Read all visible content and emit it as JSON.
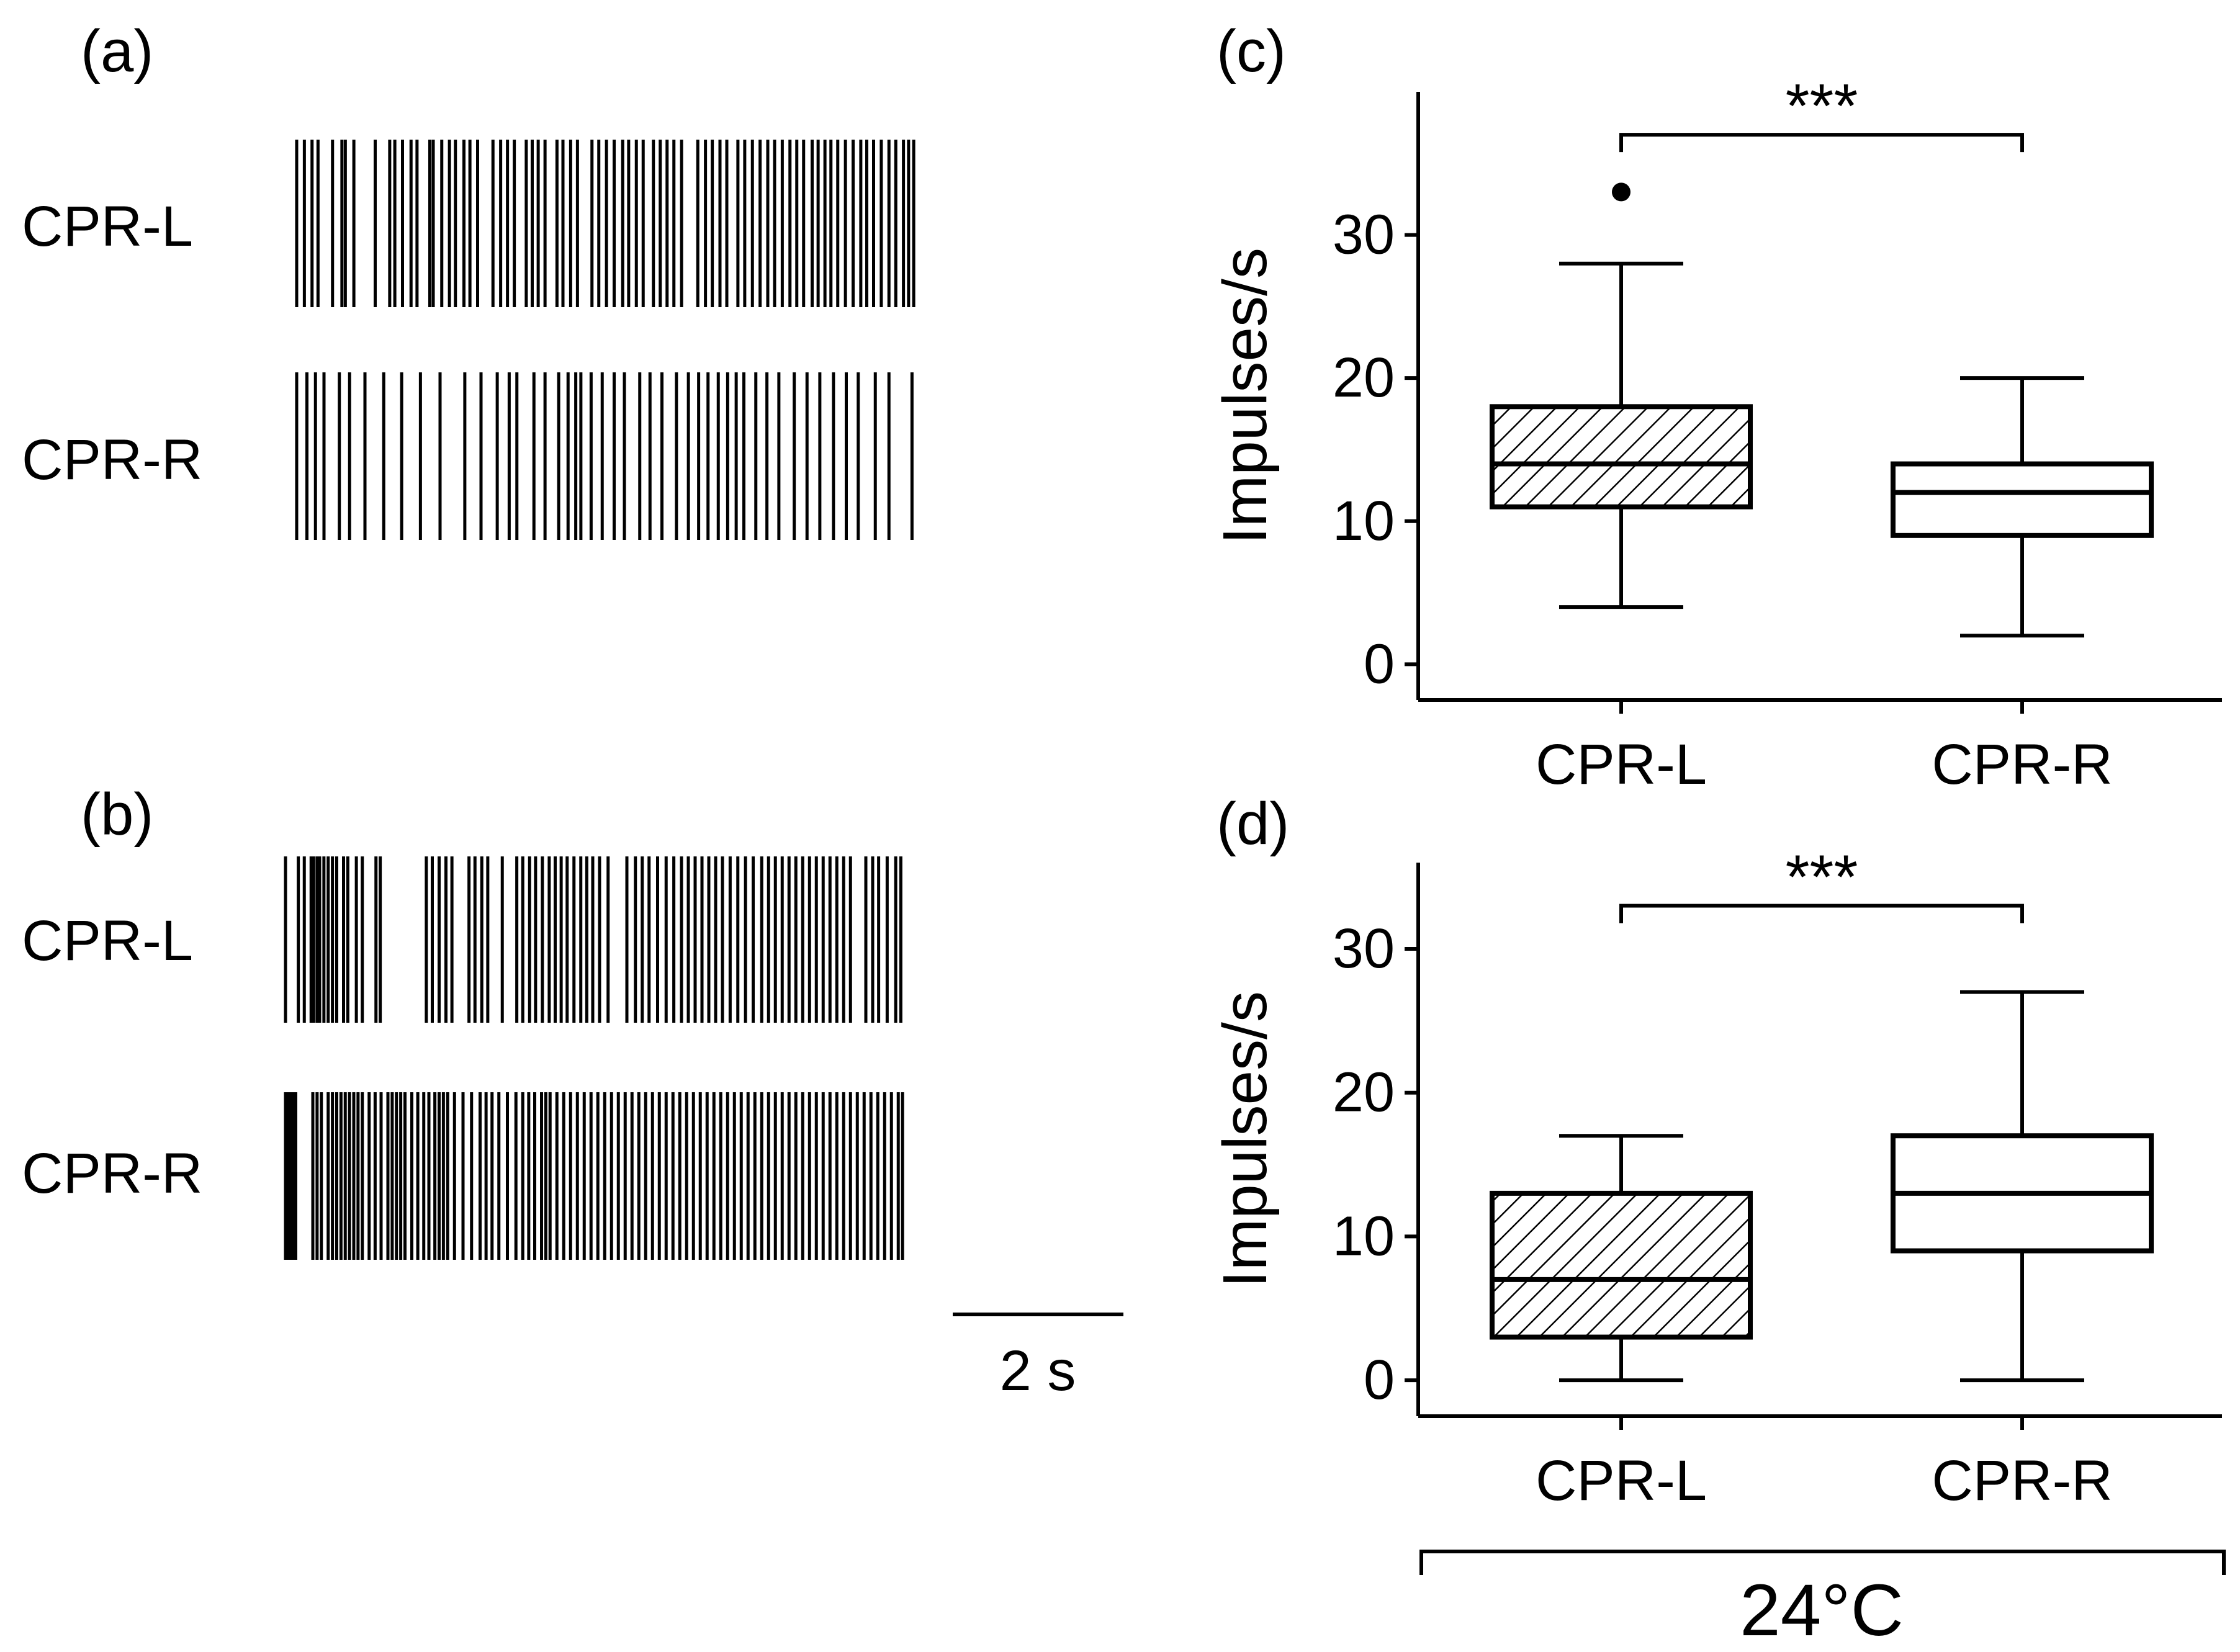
{
  "chart_data": [
    {
      "panel": "(a)",
      "type": "raster",
      "rows": [
        {
          "label": "CPR-L",
          "spike_times_s": [
            0.0,
            0.09,
            0.18,
            0.25,
            0.42,
            0.53,
            0.57,
            0.67,
            0.92,
            1.09,
            1.15,
            1.24,
            1.34,
            1.41,
            1.56,
            1.6,
            1.7,
            1.79,
            1.86,
            1.96,
            2.03,
            2.12,
            2.3,
            2.39,
            2.47,
            2.55,
            2.69,
            2.76,
            2.83,
            2.91,
            3.05,
            3.12,
            3.21,
            3.29,
            3.46,
            3.54,
            3.63,
            3.72,
            3.82,
            3.89,
            3.98,
            4.06,
            4.18,
            4.26,
            4.34,
            4.42,
            4.51,
            4.7,
            4.79,
            4.87,
            4.96,
            5.04,
            5.17,
            5.25,
            5.34,
            5.43,
            5.52,
            5.6,
            5.69,
            5.78,
            5.86,
            5.94,
            6.04,
            6.11,
            6.19,
            6.26,
            6.34,
            6.43,
            6.52,
            6.61,
            6.68,
            6.76,
            6.85,
            6.94,
            7.02,
            7.11,
            7.17,
            7.23
          ]
        },
        {
          "label": "CPR-R",
          "spike_times_s": [
            0.0,
            0.12,
            0.22,
            0.32,
            0.5,
            0.62,
            0.8,
            1.02,
            1.23,
            1.45,
            1.68,
            1.97,
            2.16,
            2.35,
            2.49,
            2.58,
            2.78,
            2.91,
            3.07,
            3.18,
            3.27,
            3.33,
            3.45,
            3.58,
            3.72,
            3.84,
            4.02,
            4.14,
            4.28,
            4.45,
            4.59,
            4.71,
            4.82,
            4.94,
            5.05,
            5.15,
            5.24,
            5.38,
            5.51,
            5.65,
            5.83,
            5.98,
            6.13,
            6.29,
            6.44,
            6.58,
            6.78,
            6.94,
            7.21
          ]
        }
      ]
    },
    {
      "panel": "(b)",
      "type": "raster",
      "rows": [
        {
          "label": "CPR-L",
          "spike_times_s": [
            0.0,
            0.15,
            0.22,
            0.3,
            0.33,
            0.37,
            0.4,
            0.45,
            0.5,
            0.55,
            0.6,
            0.68,
            0.73,
            0.83,
            0.9,
            1.06,
            1.11,
            1.65,
            1.72,
            1.8,
            1.88,
            1.95,
            2.15,
            2.22,
            2.3,
            2.37,
            2.54,
            2.71,
            2.78,
            2.86,
            2.93,
            3.01,
            3.09,
            3.16,
            3.23,
            3.3,
            3.38,
            3.46,
            3.53,
            3.6,
            3.68,
            3.78,
            4.0,
            4.1,
            4.18,
            4.26,
            4.36,
            4.46,
            4.55,
            4.64,
            4.72,
            4.8,
            4.88,
            4.96,
            5.04,
            5.12,
            5.21,
            5.3,
            5.39,
            5.48,
            5.58,
            5.66,
            5.74,
            5.82,
            5.9,
            5.98,
            6.06,
            6.14,
            6.22,
            6.3,
            6.38,
            6.46,
            6.54,
            6.62,
            6.8,
            6.88,
            6.95,
            7.05,
            7.15,
            7.21
          ]
        },
        {
          "label": "CPR-R",
          "spike_times_s": [
            0.0,
            0.03,
            0.06,
            0.09,
            0.12,
            0.32,
            0.37,
            0.42,
            0.5,
            0.55,
            0.6,
            0.65,
            0.7,
            0.75,
            0.8,
            0.85,
            0.9,
            0.98,
            1.05,
            1.12,
            1.2,
            1.25,
            1.3,
            1.35,
            1.4,
            1.48,
            1.55,
            1.62,
            1.68,
            1.75,
            1.8,
            1.85,
            1.9,
            1.98,
            2.08,
            2.18,
            2.28,
            2.35,
            2.42,
            2.5,
            2.6,
            2.7,
            2.78,
            2.85,
            2.92,
            3.0,
            3.05,
            3.1,
            3.18,
            3.26,
            3.34,
            3.42,
            3.5,
            3.58,
            3.66,
            3.74,
            3.82,
            3.9,
            3.98,
            4.06,
            4.14,
            4.22,
            4.3,
            4.38,
            4.46,
            4.54,
            4.62,
            4.7,
            4.78,
            4.86,
            4.94,
            5.02,
            5.1,
            5.18,
            5.26,
            5.34,
            5.42,
            5.5,
            5.58,
            5.66,
            5.74,
            5.82,
            5.9,
            5.98,
            6.06,
            6.14,
            6.22,
            6.3,
            6.38,
            6.46,
            6.54,
            6.62,
            6.7,
            6.78,
            6.86,
            6.94,
            7.02,
            7.1,
            7.18,
            7.23
          ]
        }
      ]
    },
    {
      "panel": "(c)",
      "type": "box",
      "ylabel": "Impulses/s",
      "ylim": [
        -2.5,
        40
      ],
      "yticks": [
        0,
        10,
        20,
        30
      ],
      "categories": [
        "CPR-L",
        "CPR-R"
      ],
      "boxes": [
        {
          "name": "CPR-L",
          "whisker_low": 4,
          "q1": 11,
          "median": 14,
          "q3": 18,
          "whisker_high": 28,
          "outliers": [
            33
          ],
          "fill": "hatched"
        },
        {
          "name": "CPR-R",
          "whisker_low": 2,
          "q1": 9,
          "median": 12,
          "q3": 14,
          "whisker_high": 20,
          "outliers": [],
          "fill": "none"
        }
      ],
      "significance": {
        "between": [
          "CPR-L",
          "CPR-R"
        ],
        "label": "***",
        "y": 37
      }
    },
    {
      "panel": "(d)",
      "type": "box",
      "ylabel": "Impulses/s",
      "ylim": [
        -2.5,
        36
      ],
      "yticks": [
        0,
        10,
        20,
        30
      ],
      "categories": [
        "CPR-L",
        "CPR-R"
      ],
      "boxes": [
        {
          "name": "CPR-L",
          "whisker_low": 0,
          "q1": 3,
          "median": 7,
          "q3": 13,
          "whisker_high": 17,
          "outliers": [],
          "fill": "hatched"
        },
        {
          "name": "CPR-R",
          "whisker_low": 0,
          "q1": 9,
          "median": 13,
          "q3": 17,
          "whisker_high": 27,
          "outliers": [],
          "fill": "none"
        }
      ],
      "significance": {
        "between": [
          "CPR-L",
          "CPR-R"
        ],
        "label": "***",
        "y": 33
      }
    }
  ],
  "scale_bar": {
    "label": "2 s",
    "seconds": 2
  },
  "condition_label": "24°C"
}
